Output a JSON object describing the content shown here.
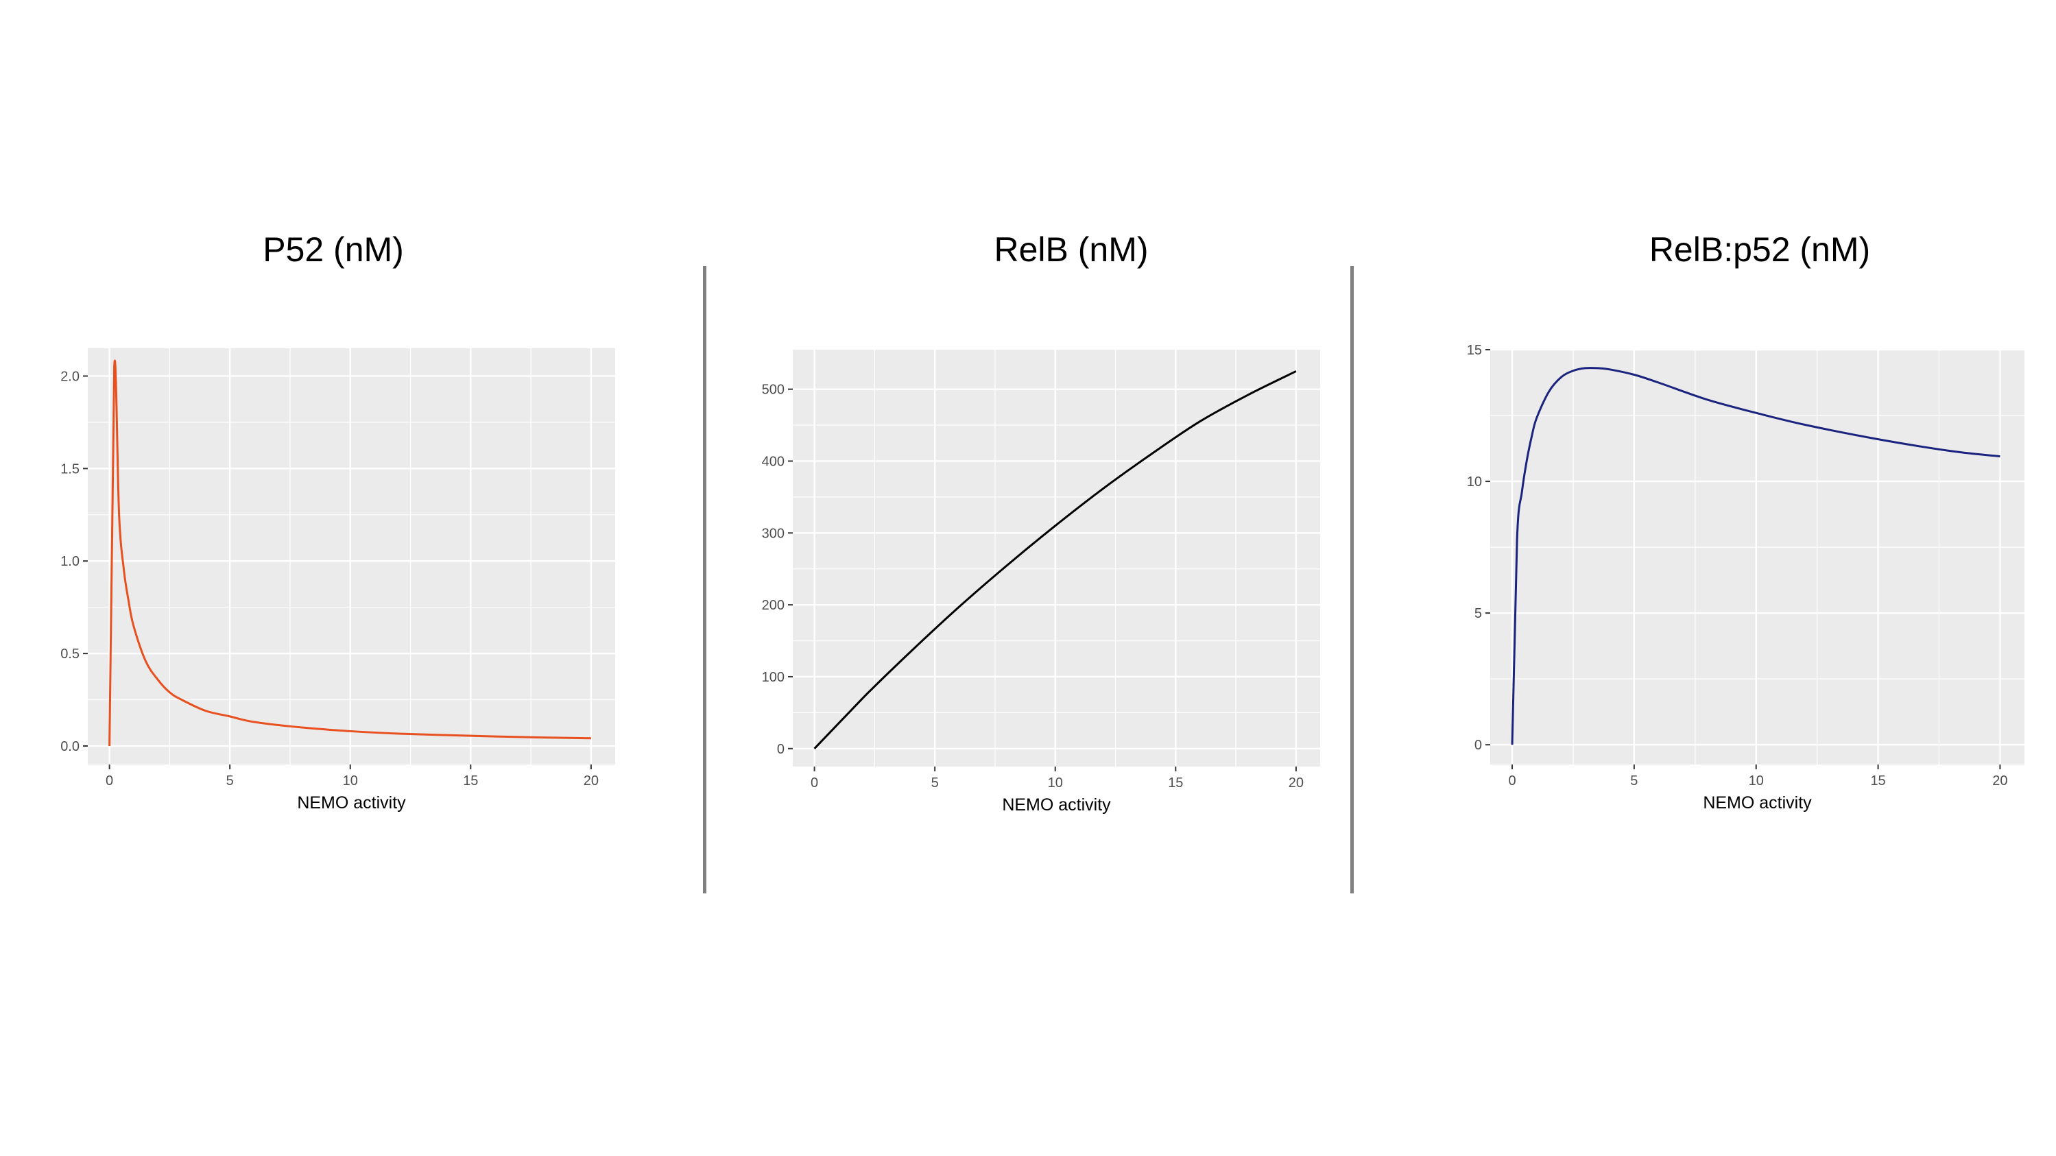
{
  "charts": [
    {
      "title": "P52 (nM)",
      "xlabel": "NEMO activity",
      "color": "#e8501f"
    },
    {
      "title": "RelB (nM)",
      "xlabel": "NEMO activity",
      "color": "#000000"
    },
    {
      "title": "RelB:p52 (nM)",
      "xlabel": "NEMO activity",
      "color": "#1a237e"
    }
  ],
  "chart_data": [
    {
      "type": "line",
      "title": "P52 (nM)",
      "xlabel": "NEMO activity",
      "ylabel": "",
      "xlim": [
        -0.9,
        21.0
      ],
      "ylim": [
        -0.1,
        2.15
      ],
      "xticks": [
        0,
        5,
        10,
        15,
        20
      ],
      "yticks": [
        0.0,
        0.5,
        1.0,
        1.5,
        2.0
      ],
      "xtick_labels": [
        "0",
        "5",
        "10",
        "15",
        "20"
      ],
      "ytick_labels": [
        "0.0",
        "0.5",
        "1.0",
        "1.5",
        "2.0"
      ],
      "grid": true,
      "series": [
        {
          "color": "#e8501f",
          "x": [
            0,
            0.2,
            0.4,
            0.6,
            0.8,
            1.0,
            1.5,
            2.0,
            2.5,
            3,
            4,
            5,
            6,
            8,
            10,
            12,
            15,
            18,
            20
          ],
          "y": [
            0.0,
            2.05,
            1.25,
            0.95,
            0.78,
            0.65,
            0.46,
            0.36,
            0.29,
            0.25,
            0.19,
            0.16,
            0.13,
            0.1,
            0.08,
            0.067,
            0.055,
            0.046,
            0.042
          ]
        }
      ]
    },
    {
      "type": "line",
      "title": "RelB (nM)",
      "xlabel": "NEMO activity",
      "ylabel": "",
      "xlim": [
        -0.9,
        21.0
      ],
      "ylim": [
        -25,
        555
      ],
      "xticks": [
        0,
        5,
        10,
        15,
        20
      ],
      "yticks": [
        0,
        100,
        200,
        300,
        400,
        500
      ],
      "xtick_labels": [
        "0",
        "5",
        "10",
        "15",
        "20"
      ],
      "ytick_labels": [
        "0",
        "100",
        "200",
        "300",
        "400",
        "500"
      ],
      "grid": true,
      "series": [
        {
          "color": "#000000",
          "x": [
            0,
            2,
            4,
            6,
            8,
            10,
            12,
            14,
            16,
            18,
            20
          ],
          "y": [
            0,
            70,
            135,
            197,
            255,
            310,
            362,
            410,
            455,
            492,
            525
          ]
        }
      ]
    },
    {
      "type": "line",
      "title": "RelB:p52 (nM)",
      "xlabel": "NEMO activity",
      "ylabel": "",
      "xlim": [
        -0.9,
        21.0
      ],
      "ylim": [
        -0.75,
        15.0
      ],
      "xticks": [
        0,
        5,
        10,
        15,
        20
      ],
      "yticks": [
        0,
        5,
        10,
        15
      ],
      "xtick_labels": [
        "0",
        "5",
        "10",
        "15",
        "20"
      ],
      "ytick_labels": [
        "0",
        "5",
        "10",
        "15"
      ],
      "grid": true,
      "series": [
        {
          "color": "#1a237e",
          "x": [
            0,
            0.2,
            0.4,
            0.6,
            0.8,
            1.0,
            1.5,
            2.0,
            2.5,
            3.0,
            3.5,
            4.0,
            5,
            6,
            8,
            10,
            12,
            15,
            18,
            20
          ],
          "y": [
            0,
            7.8,
            9.6,
            10.8,
            11.7,
            12.4,
            13.4,
            13.95,
            14.2,
            14.3,
            14.3,
            14.25,
            14.05,
            13.75,
            13.1,
            12.6,
            12.15,
            11.6,
            11.15,
            10.95
          ]
        }
      ]
    }
  ]
}
